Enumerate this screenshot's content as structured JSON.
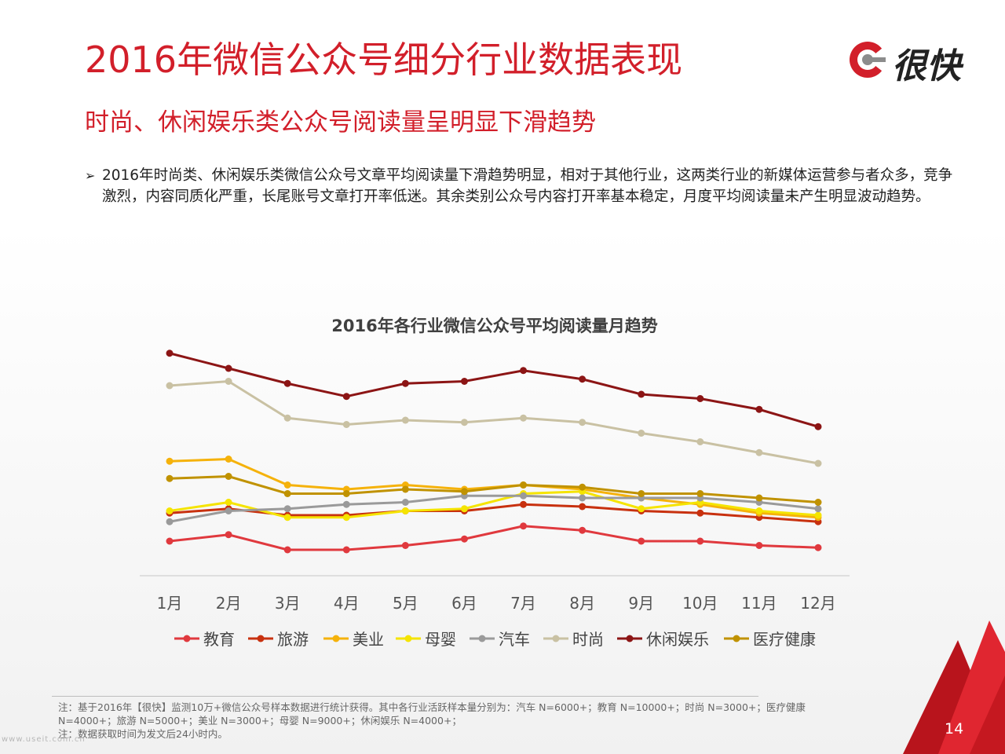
{
  "slide": {
    "title": "2016年微信公众号细分行业数据表现",
    "subtitle": "时尚、休闲娱乐类公众号阅读量呈明显下滑趋势",
    "logo_text": "很快",
    "bullet_arrow": "➢",
    "bullet_text": "2016年时尚类、休闲娱乐类微信公众号文章平均阅读量下滑趋势明显，相对于其他行业，这两类行业的新媒体运营参与者众多，竞争激烈，内容同质化严重，长尾账号文章打开率低迷。其余类别公众号内容打开率基本稳定，月度平均阅读量未产生明显波动趋势。",
    "footnote": [
      "注：基于2016年【很快】监测10万+微信公众号样本数据进行统计获得。其中各行业活跃样本量分别为：汽车 N=6000+；教育 N=10000+；时尚 N=3000+；医疗健康",
      "N=4000+；旅游 N=5000+；美业 N=3000+；母婴 N=9000+；休闲娱乐 N=4000+；",
      "注：数据获取时间为发文后24小时内。"
    ],
    "page_number": "14",
    "watermark": "www.useit.com.cn"
  },
  "colors": {
    "accent": "#d21f2a",
    "logo_dark": "#222222",
    "logo_grey": "#8c8c8c"
  },
  "chart_data": {
    "type": "line",
    "title": "2016年各行业微信公众号平均阅读量月趋势",
    "xlabel": "",
    "ylabel": "",
    "categories": [
      "1月",
      "2月",
      "3月",
      "4月",
      "5月",
      "6月",
      "7月",
      "8月",
      "9月",
      "10月",
      "11月",
      "12月"
    ],
    "ylim": [
      0,
      100
    ],
    "grid": false,
    "legend_position": "bottom",
    "series": [
      {
        "name": "教育",
        "color": "#e0393e",
        "values": [
          16,
          19,
          12,
          12,
          14,
          17,
          23,
          21,
          16,
          16,
          14,
          13
        ]
      },
      {
        "name": "旅游",
        "color": "#c8310f",
        "values": [
          29,
          31,
          28,
          28,
          30,
          30,
          33,
          32,
          30,
          29,
          27,
          25
        ]
      },
      {
        "name": "美业",
        "color": "#f5b20b",
        "values": [
          53,
          54,
          42,
          40,
          42,
          40,
          42,
          40,
          36,
          33,
          29,
          27
        ]
      },
      {
        "name": "母婴",
        "color": "#f5e400",
        "values": [
          30,
          34,
          27,
          27,
          30,
          31,
          38,
          39,
          31,
          34,
          30,
          28
        ]
      },
      {
        "name": "汽车",
        "color": "#9a9a9a",
        "values": [
          25,
          30,
          31,
          33,
          34,
          37,
          37,
          36,
          36,
          36,
          34,
          31
        ]
      },
      {
        "name": "时尚",
        "color": "#c9c1a3",
        "values": [
          88,
          90,
          73,
          70,
          72,
          71,
          73,
          71,
          66,
          62,
          57,
          52
        ]
      },
      {
        "name": "休闲娱乐",
        "color": "#8c1515",
        "values": [
          103,
          96,
          89,
          83,
          89,
          90,
          95,
          91,
          84,
          82,
          77,
          69
        ]
      },
      {
        "name": "医疗健康",
        "color": "#c09200",
        "values": [
          45,
          46,
          38,
          38,
          40,
          39,
          42,
          41,
          38,
          38,
          36,
          34
        ]
      }
    ]
  }
}
